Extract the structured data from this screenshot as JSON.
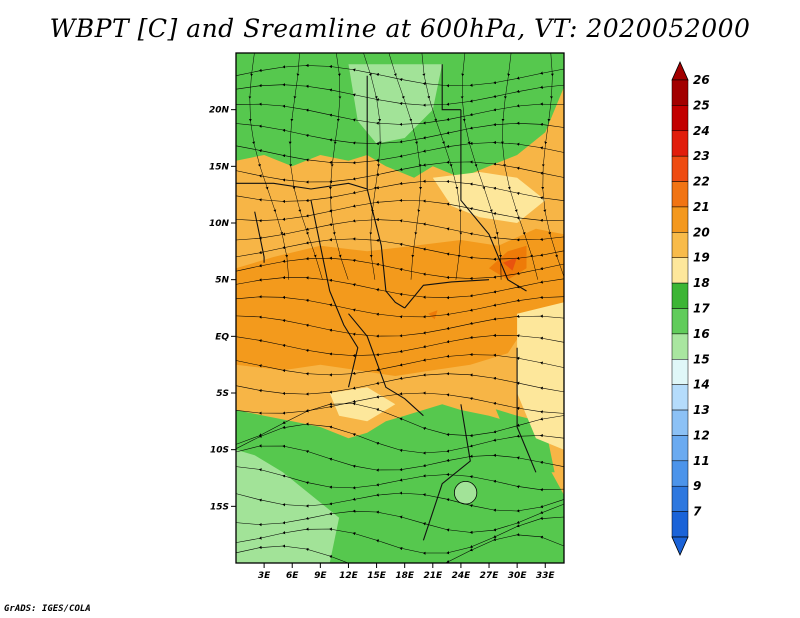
{
  "title": "WBPT [C] and Sreamline at 600hPa, VT: 2020052000",
  "credit": "GrADS: IGES/COLA",
  "map": {
    "lon_range": [
      0,
      35
    ],
    "lat_range": [
      -20,
      25
    ],
    "lon_ticks": [
      {
        "value": 3,
        "label": "3E"
      },
      {
        "value": 6,
        "label": "6E"
      },
      {
        "value": 9,
        "label": "9E"
      },
      {
        "value": 12,
        "label": "12E"
      },
      {
        "value": 15,
        "label": "15E"
      },
      {
        "value": 18,
        "label": "18E"
      },
      {
        "value": 21,
        "label": "21E"
      },
      {
        "value": 24,
        "label": "24E"
      },
      {
        "value": 27,
        "label": "27E"
      },
      {
        "value": 30,
        "label": "30E"
      },
      {
        "value": 33,
        "label": "33E"
      }
    ],
    "lat_ticks": [
      {
        "value": 20,
        "label": "20N"
      },
      {
        "value": 15,
        "label": "15N"
      },
      {
        "value": 10,
        "label": "10N"
      },
      {
        "value": 5,
        "label": "5N"
      },
      {
        "value": 0,
        "label": "EQ"
      },
      {
        "value": -5,
        "label": "5S"
      },
      {
        "value": -10,
        "label": "10S"
      },
      {
        "value": -15,
        "label": "15S"
      }
    ],
    "regions": [
      {
        "name": "sahel-green",
        "value": 17,
        "color": "#56c84e",
        "lonlat": [
          [
            0,
            25
          ],
          [
            35,
            25
          ],
          [
            35,
            22
          ],
          [
            33,
            18
          ],
          [
            30,
            16
          ],
          [
            27,
            15
          ],
          [
            24,
            14
          ],
          [
            21,
            15
          ],
          [
            19,
            14
          ],
          [
            16,
            15
          ],
          [
            14,
            16
          ],
          [
            12,
            15.5
          ],
          [
            9,
            16
          ],
          [
            6,
            15
          ],
          [
            3,
            16
          ],
          [
            0,
            15.5
          ]
        ]
      },
      {
        "name": "sahel-light-green",
        "value": 16,
        "color": "#a2e398",
        "lonlat": [
          [
            12,
            24
          ],
          [
            22,
            24
          ],
          [
            21,
            20
          ],
          [
            18,
            17.5
          ],
          [
            15,
            17
          ],
          [
            13,
            19
          ]
        ]
      },
      {
        "name": "south-green",
        "value": 17,
        "color": "#56c84e",
        "lonlat": [
          [
            0,
            -20
          ],
          [
            35,
            -20
          ],
          [
            35,
            -14
          ],
          [
            33,
            -11
          ],
          [
            31,
            -8.5
          ],
          [
            29,
            -7.5
          ],
          [
            27,
            -7
          ],
          [
            24,
            -6.5
          ],
          [
            22,
            -6
          ],
          [
            20,
            -6.5
          ],
          [
            18,
            -7
          ],
          [
            16,
            -7.5
          ],
          [
            14,
            -8.5
          ],
          [
            12,
            -9
          ],
          [
            9,
            -8
          ],
          [
            6,
            -7.5
          ],
          [
            3,
            -7
          ],
          [
            0,
            -6.5
          ]
        ]
      },
      {
        "name": "south-light-green",
        "value": 16,
        "color": "#a2e398",
        "lonlat": [
          [
            0,
            -20
          ],
          [
            10,
            -20
          ],
          [
            11,
            -16
          ],
          [
            8,
            -14
          ],
          [
            5,
            -12
          ],
          [
            2,
            -10.5
          ],
          [
            0,
            -10
          ]
        ]
      },
      {
        "name": "east-green",
        "value": 17,
        "color": "#56c84e",
        "lonlat": [
          [
            28,
            -4
          ],
          [
            31,
            -4
          ],
          [
            33,
            -8
          ],
          [
            34,
            -12
          ],
          [
            32,
            -12
          ],
          [
            29,
            -9
          ],
          [
            27.5,
            -6
          ]
        ]
      },
      {
        "name": "light-orange-band",
        "value": 20,
        "color": "#f7b546",
        "lonlat": [
          [
            0,
            12
          ],
          [
            6,
            12.5
          ],
          [
            12,
            11
          ],
          [
            18,
            10.5
          ],
          [
            24,
            11
          ],
          [
            30,
            12
          ],
          [
            35,
            10
          ],
          [
            35,
            -8
          ],
          [
            30,
            -7
          ],
          [
            24,
            -5.5
          ],
          [
            18,
            -5
          ],
          [
            12,
            -6.5
          ],
          [
            6,
            -6
          ],
          [
            0,
            -5.5
          ]
        ]
      },
      {
        "name": "orange-band",
        "value": 21,
        "color": "#f39a1c",
        "lonlat": [
          [
            0,
            6
          ],
          [
            4,
            7
          ],
          [
            9,
            8
          ],
          [
            14,
            7.5
          ],
          [
            19,
            8
          ],
          [
            24,
            8.5
          ],
          [
            28,
            8
          ],
          [
            32,
            9.5
          ],
          [
            35,
            9
          ],
          [
            35,
            2
          ],
          [
            31,
            1
          ],
          [
            29,
            -1.5
          ],
          [
            25,
            -2.5
          ],
          [
            21,
            -3
          ],
          [
            17,
            -3.5
          ],
          [
            13,
            -3
          ],
          [
            9,
            -2.5
          ],
          [
            5,
            -3
          ],
          [
            0,
            -2.5
          ]
        ]
      },
      {
        "name": "pale-yellow-sudan",
        "value": 19,
        "color": "#fde79b",
        "lonlat": [
          [
            21,
            14
          ],
          [
            26,
            14.5
          ],
          [
            30,
            14
          ],
          [
            33,
            12
          ],
          [
            30,
            10
          ],
          [
            26,
            10.5
          ],
          [
            23,
            11.5
          ]
        ]
      },
      {
        "name": "pale-yellow-lakes",
        "value": 19,
        "color": "#fde79b",
        "lonlat": [
          [
            30,
            2
          ],
          [
            35,
            3
          ],
          [
            35,
            -10
          ],
          [
            32,
            -9
          ],
          [
            30,
            -5
          ]
        ]
      },
      {
        "name": "pale-yellow-angola",
        "value": 19,
        "color": "#fde79b",
        "lonlat": [
          [
            10,
            -5
          ],
          [
            14,
            -4.5
          ],
          [
            17,
            -6
          ],
          [
            14,
            -7.5
          ],
          [
            11,
            -7
          ]
        ]
      },
      {
        "name": "dark-orange-cell-1",
        "value": 22,
        "color": "#ee7b08",
        "lonlat": [
          [
            27,
            6
          ],
          [
            29,
            7.5
          ],
          [
            31,
            8
          ],
          [
            31,
            6
          ],
          [
            29,
            5
          ]
        ]
      },
      {
        "name": "red-orange-cell",
        "value": 23,
        "color": "#e9530e",
        "lonlat": [
          [
            28.5,
            6.5
          ],
          [
            30,
            7
          ],
          [
            29.5,
            5.8
          ]
        ]
      },
      {
        "name": "dark-orange-cell-2",
        "value": 22,
        "color": "#ee7b08",
        "lonlat": [
          [
            20.5,
            2
          ],
          [
            21.5,
            2.3
          ],
          [
            21.2,
            1.5
          ]
        ]
      }
    ],
    "eddy": {
      "center": [
        24.5,
        -13.8
      ],
      "radius_lon": 1.2,
      "radius_lat": 1.0,
      "color": "#a2e398"
    }
  },
  "colorbar": {
    "levels": [
      {
        "label": "26",
        "color": "#a20000"
      },
      {
        "label": "25",
        "color": "#c20000"
      },
      {
        "label": "24",
        "color": "#e11d0b"
      },
      {
        "label": "23",
        "color": "#ee4c12"
      },
      {
        "label": "22",
        "color": "#f17413"
      },
      {
        "label": "21",
        "color": "#f3981e"
      },
      {
        "label": "20",
        "color": "#f8bb4a"
      },
      {
        "label": "19",
        "color": "#fde79b"
      },
      {
        "label": "18",
        "color": "#3cb534"
      },
      {
        "label": "17",
        "color": "#61cc5b"
      },
      {
        "label": "16",
        "color": "#a9e6a0"
      },
      {
        "label": "15",
        "color": "#e0f7f8"
      },
      {
        "label": "14",
        "color": "#b5dcfb"
      },
      {
        "label": "13",
        "color": "#8cc1f5"
      },
      {
        "label": "12",
        "color": "#6aaaf0"
      },
      {
        "label": "11",
        "color": "#4c94ea"
      },
      {
        "label": "9",
        "color": "#2e78df"
      },
      {
        "label": "7",
        "color": "#1a63d8"
      }
    ],
    "top_color": "#a20000",
    "bottom_color": "#1a63d8"
  }
}
